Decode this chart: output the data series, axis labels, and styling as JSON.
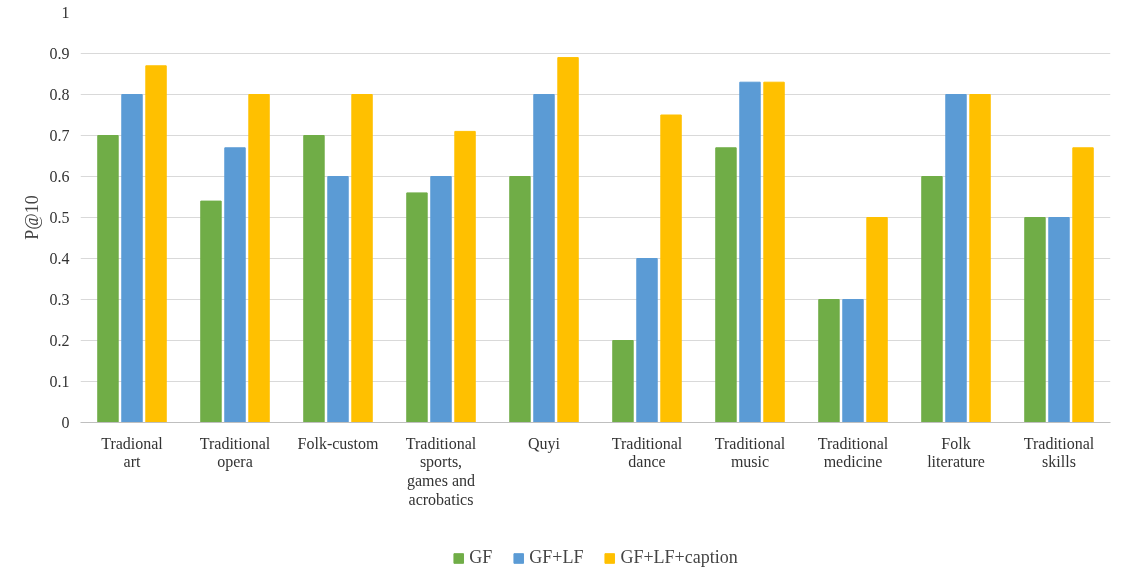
{
  "chart_data": {
    "type": "bar",
    "ylabel": "P@10",
    "categories": [
      "Tradional art",
      "Traditional opera",
      "Folk-custom",
      "Traditional sports, games and acrobatics",
      "Quyi",
      "Traditional dance",
      "Traditional music",
      "Traditional medicine",
      "Folk literature",
      "Traditional skills"
    ],
    "series": [
      {
        "name": "GF",
        "color": "#70ad47",
        "values": [
          0.7,
          0.54,
          0.7,
          0.56,
          0.6,
          0.2,
          0.67,
          0.3,
          0.6,
          0.5
        ]
      },
      {
        "name": "GF+LF",
        "color": "#5b9bd5",
        "values": [
          0.8,
          0.67,
          0.6,
          0.6,
          0.8,
          0.4,
          0.83,
          0.3,
          0.8,
          0.5
        ]
      },
      {
        "name": "GF+LF+caption",
        "color": "#ffc000",
        "values": [
          0.87,
          0.8,
          0.8,
          0.71,
          0.89,
          0.75,
          0.83,
          0.5,
          0.8,
          0.67
        ]
      }
    ],
    "ylim": [
      0,
      1
    ],
    "yticks": [
      0,
      0.1,
      0.2,
      0.3,
      0.4,
      0.5,
      0.6,
      0.7,
      0.8,
      0.9,
      1
    ],
    "grid": "y",
    "legend": "bottom"
  }
}
